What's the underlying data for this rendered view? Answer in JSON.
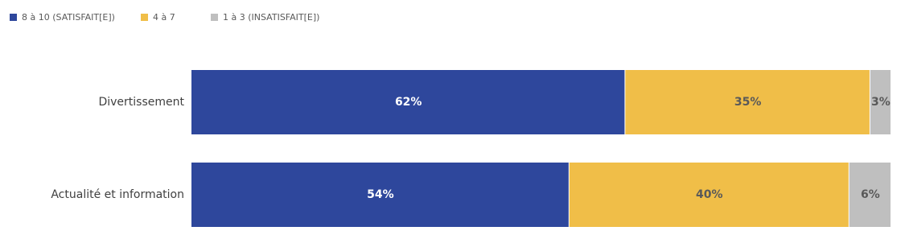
{
  "chart_data": {
    "type": "stacked-bar-horizontal",
    "categories": [
      "Divertissement",
      "Actualité et information"
    ],
    "series": [
      {
        "name": "8 à 10 (SATISFAIT[E])",
        "color": "#2e479c",
        "values": [
          62,
          54
        ],
        "value_labels": [
          "62%",
          "54%"
        ]
      },
      {
        "name": "4 à 7",
        "color": "#f0be48",
        "values": [
          35,
          40
        ],
        "value_labels": [
          "35%",
          "40%"
        ]
      },
      {
        "name": "1 à 3 (INSATISFAIT[E])",
        "color": "#bfbfbf",
        "values": [
          3,
          6
        ],
        "value_labels": [
          "3%",
          "6%"
        ]
      }
    ],
    "xlim": [
      0,
      100
    ],
    "legend": "top-left"
  }
}
